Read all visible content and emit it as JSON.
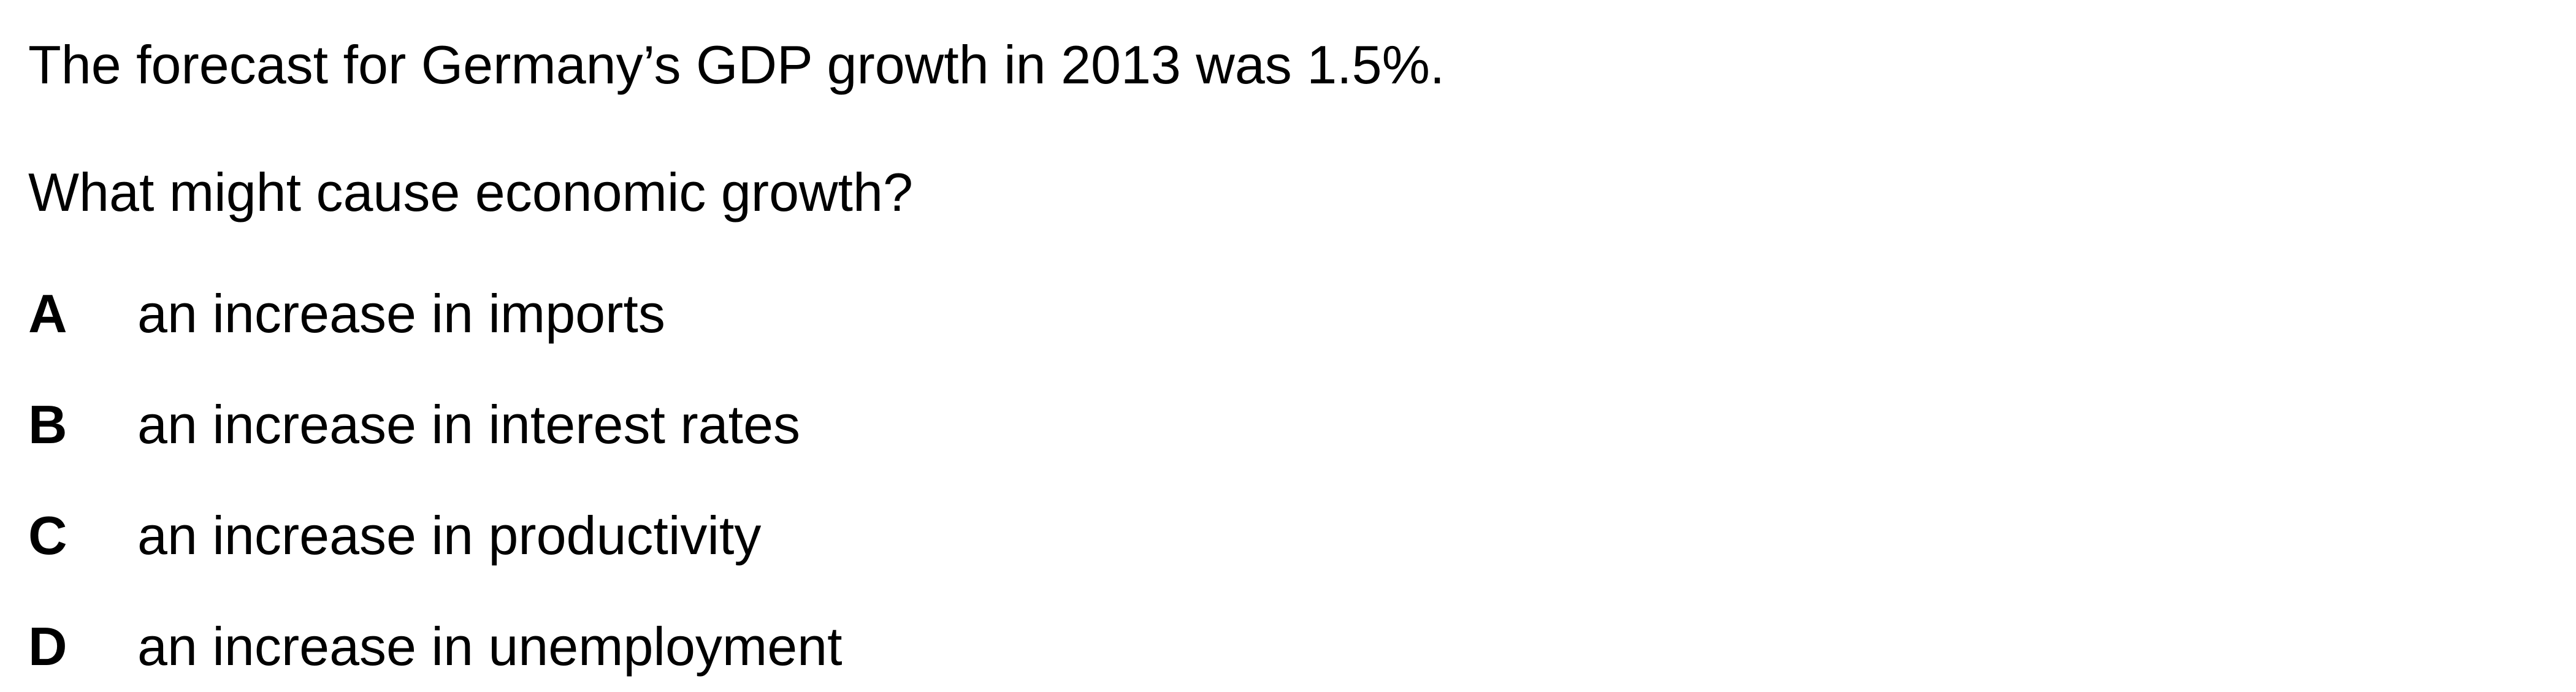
{
  "question": {
    "stem": [
      "The forecast for Germany’s GDP growth in 2013 was 1.5%.",
      "What might cause economic growth?"
    ],
    "options": [
      {
        "letter": "A",
        "text": "an increase in imports"
      },
      {
        "letter": "B",
        "text": "an increase in interest rates"
      },
      {
        "letter": "C",
        "text": "an increase in productivity"
      },
      {
        "letter": "D",
        "text": "an increase in unemployment"
      }
    ]
  }
}
